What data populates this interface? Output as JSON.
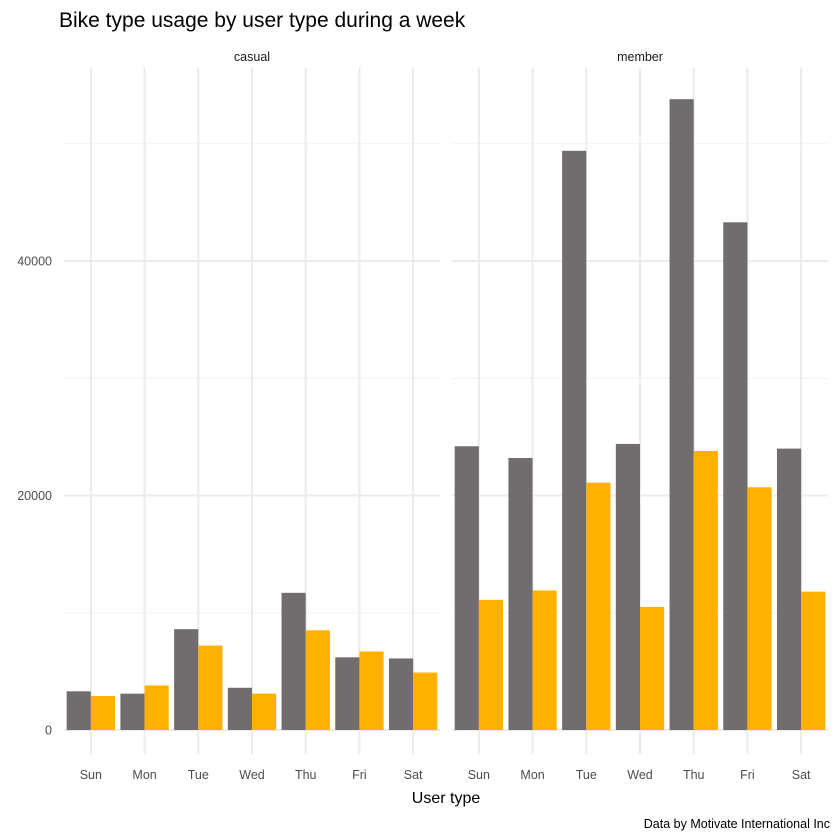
{
  "chart_data": {
    "type": "bar",
    "title": "Bike type usage by user type during a week",
    "xlabel": "User type",
    "ylabel": "",
    "caption": "Data by Motivate International Inc",
    "categories": [
      "Sun",
      "Mon",
      "Tue",
      "Wed",
      "Thu",
      "Fri",
      "Sat"
    ],
    "ylim": [
      0,
      55000
    ],
    "yticks": [
      0,
      20000,
      40000
    ],
    "ytick_labels": [
      "0",
      "20000",
      "40000"
    ],
    "grid": true,
    "legend": "none",
    "series_colors": [
      "#716d6e",
      "#ffb000"
    ],
    "facets": [
      {
        "label": "casual",
        "series": [
          {
            "name": "series_1",
            "values": [
              3300,
              3100,
              8600,
              3600,
              11700,
              6200,
              6100
            ]
          },
          {
            "name": "series_2",
            "values": [
              2900,
              3800,
              7200,
              3100,
              8500,
              6700,
              4900
            ]
          }
        ]
      },
      {
        "label": "member",
        "series": [
          {
            "name": "series_1",
            "values": [
              24200,
              23200,
              49400,
              24400,
              53800,
              43300,
              24000
            ]
          },
          {
            "name": "series_2",
            "values": [
              11100,
              11900,
              21100,
              10500,
              23800,
              20700,
              11800
            ]
          }
        ]
      }
    ]
  }
}
